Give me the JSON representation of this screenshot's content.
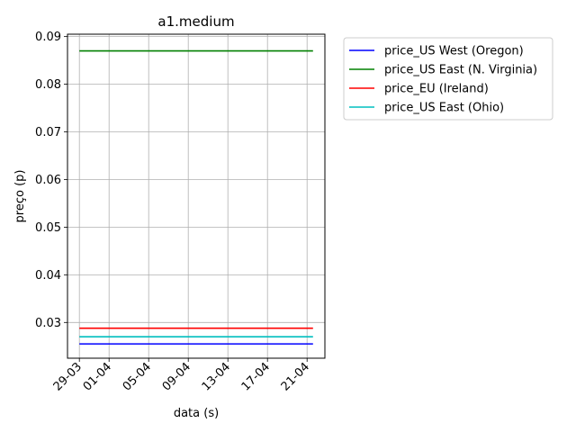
{
  "chart_data": {
    "type": "line",
    "title": "a1.medium",
    "xlabel": "data (s)",
    "ylabel": "preço (p)",
    "x_tick_labels": [
      "29-03",
      "01-04",
      "05-04",
      "09-04",
      "13-04",
      "17-04",
      "21-04"
    ],
    "x_ticks_days": [
      0,
      3,
      7,
      11,
      15,
      19,
      23
    ],
    "x_range_days": [
      -1.2,
      24.8
    ],
    "x_data_days": [
      0,
      23.6
    ],
    "y_ticks": [
      0.03,
      0.04,
      0.05,
      0.06,
      0.07,
      0.08,
      0.09
    ],
    "y_tick_labels": [
      "0.03",
      "0.04",
      "0.05",
      "0.06",
      "0.07",
      "0.08",
      "0.09"
    ],
    "ylim": [
      0.0225,
      0.0905
    ],
    "grid": true,
    "legend_position": "outside-top-right",
    "series": [
      {
        "name": "price_US West (Oregon)",
        "color": "#0000ff",
        "values": [
          0.0255,
          0.0255
        ]
      },
      {
        "name": "price_US East (N. Virginia)",
        "color": "#008000",
        "values": [
          0.087,
          0.087
        ]
      },
      {
        "name": "price_EU (Ireland)",
        "color": "#ff0000",
        "values": [
          0.0288,
          0.0288
        ]
      },
      {
        "name": "price_US East (Ohio)",
        "color": "#00bfbf",
        "values": [
          0.027,
          0.027
        ]
      }
    ]
  }
}
